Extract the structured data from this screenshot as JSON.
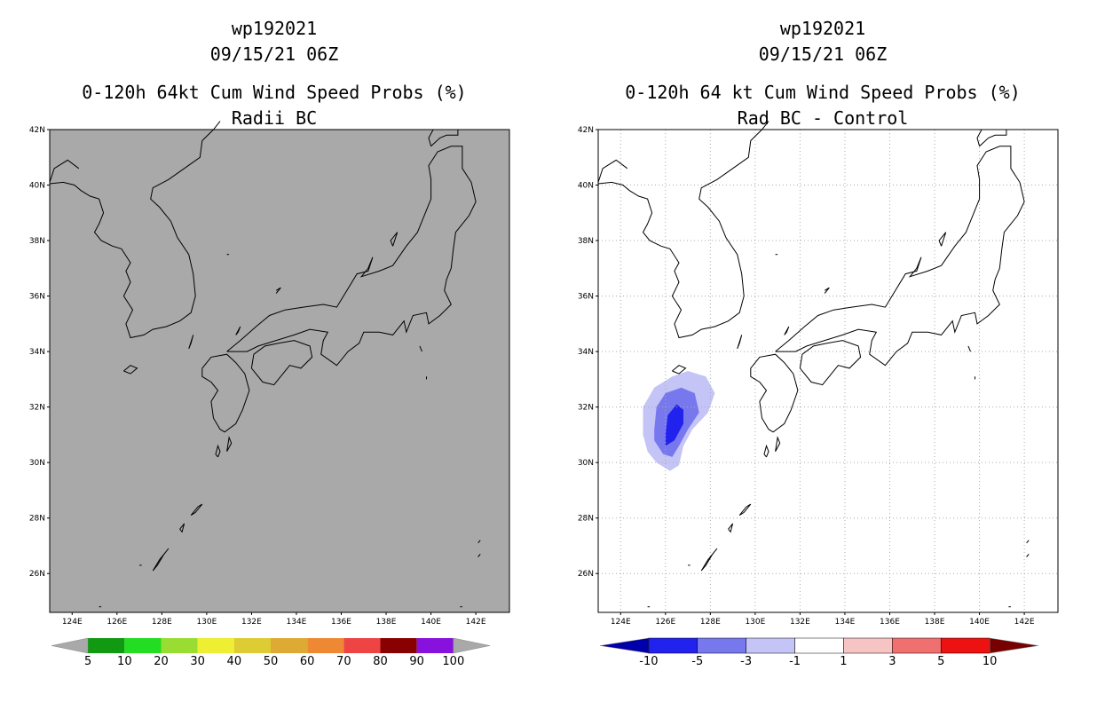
{
  "left": {
    "storm_id": "wp192021",
    "datetime": "09/15/21 06Z",
    "product": "0-120h 64kt Cum Wind Speed Probs (%)",
    "subtitle": "Radii BC",
    "background_color": "#a9a9a9",
    "colorbar": {
      "colors": [
        "#a9a9a9",
        "#119911",
        "#22dd22",
        "#99dd33",
        "#eeee33",
        "#ddcc33",
        "#ddaa33",
        "#ee8833",
        "#ee4444",
        "#880000",
        "#8811dd",
        "#a9a9a9"
      ],
      "labels": [
        "5",
        "10",
        "20",
        "30",
        "40",
        "50",
        "60",
        "70",
        "80",
        "90",
        "100"
      ]
    }
  },
  "right": {
    "storm_id": "wp192021",
    "datetime": "09/15/21 06Z",
    "product": "0-120h 64 kt Cum Wind Speed Probs (%)",
    "subtitle": "Rad BC - Control",
    "background_color": "#ffffff",
    "colorbar": {
      "colors": [
        "#0000aa",
        "#2222ee",
        "#7777ee",
        "#c4c4f6",
        "#ffffff",
        "#f7c4c4",
        "#f07070",
        "#ee1111",
        "#770000"
      ],
      "labels": [
        "-10",
        "-5",
        "-3",
        "-1",
        "1",
        "3",
        "5",
        "10"
      ]
    },
    "anomaly": {
      "description_values": [
        "-1",
        "-3",
        "-5"
      ],
      "colors": [
        "#c4c4f6",
        "#7777ee",
        "#2222ee"
      ]
    }
  },
  "map": {
    "lat_labels": [
      "42N",
      "40N",
      "38N",
      "36N",
      "34N",
      "32N",
      "30N",
      "28N",
      "26N"
    ],
    "lon_labels": [
      "124E",
      "126E",
      "128E",
      "130E",
      "132E",
      "134E",
      "136E",
      "138E",
      "140E",
      "142E"
    ],
    "lat_values": [
      42,
      40,
      38,
      36,
      34,
      32,
      30,
      28,
      26
    ],
    "lon_values": [
      124,
      126,
      128,
      130,
      132,
      134,
      136,
      138,
      140,
      142
    ],
    "lon_range": [
      123,
      143.5
    ],
    "lat_range": [
      24.6,
      42
    ]
  }
}
